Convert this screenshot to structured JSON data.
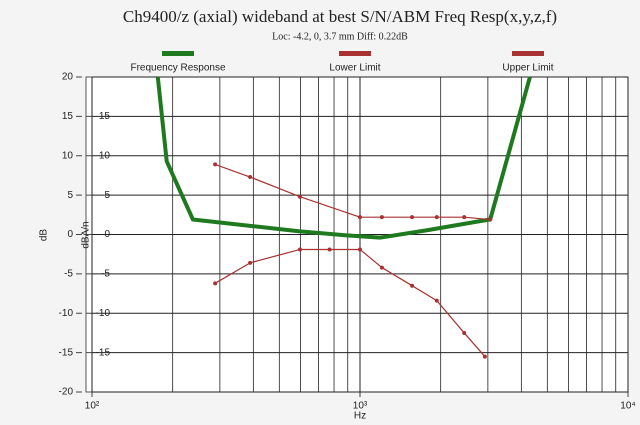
{
  "chart_data": {
    "type": "line",
    "title": "Ch9400/z (axial) wideband at best S/N/ABM Freq Resp(x,y,z,f)",
    "subtitle": "Loc: -4.2, 0, 3.7 mm Diff: 0.22dB",
    "xlabel": "Hz",
    "ylabel": "dB",
    "y2label": "dBA/n",
    "xscale": "log",
    "grid": true,
    "xlim": [
      100,
      10000
    ],
    "xticks": [
      {
        "value": 100,
        "label": "10²"
      },
      {
        "value": 1000,
        "label": "10³"
      },
      {
        "value": 10000,
        "label": "10⁴"
      }
    ],
    "ylim": [
      -20,
      20
    ],
    "yticks": [
      20,
      15,
      10,
      5,
      0,
      -5,
      -10,
      -15,
      -20
    ],
    "y2lim": [
      -20,
      20
    ],
    "y2ticks": [
      15,
      10,
      5,
      0,
      -5,
      -10,
      -15
    ],
    "series": [
      {
        "name": "Frequency Response",
        "color": "#1f7a1f",
        "x": [
          176,
          190,
          238,
          389,
          597,
          880,
          1186,
          1825,
          2804,
          3060,
          4306
        ],
        "values": [
          20,
          9.3,
          1.9,
          1.1,
          0.4,
          -0.1,
          -0.4,
          0.6,
          1.7,
          1.9,
          20
        ]
      },
      {
        "name": "Lower Limit",
        "color": "#a83232",
        "x": [
          288,
          389,
          597,
          770,
          1000,
          1207,
          1564,
          1934,
          2448,
          2924
        ],
        "values": [
          -6.2,
          -3.6,
          -1.9,
          -1.9,
          -1.9,
          -4.2,
          -6.5,
          -8.4,
          -12.5,
          -15.5
        ]
      },
      {
        "name": "Upper Limit",
        "color": "#a83232",
        "x": [
          288,
          389,
          597,
          1000,
          1207,
          1564,
          1934,
          2448,
          3060
        ],
        "values": [
          8.9,
          7.3,
          4.8,
          2.2,
          2.2,
          2.2,
          2.2,
          2.2,
          1.9
        ]
      }
    ]
  }
}
